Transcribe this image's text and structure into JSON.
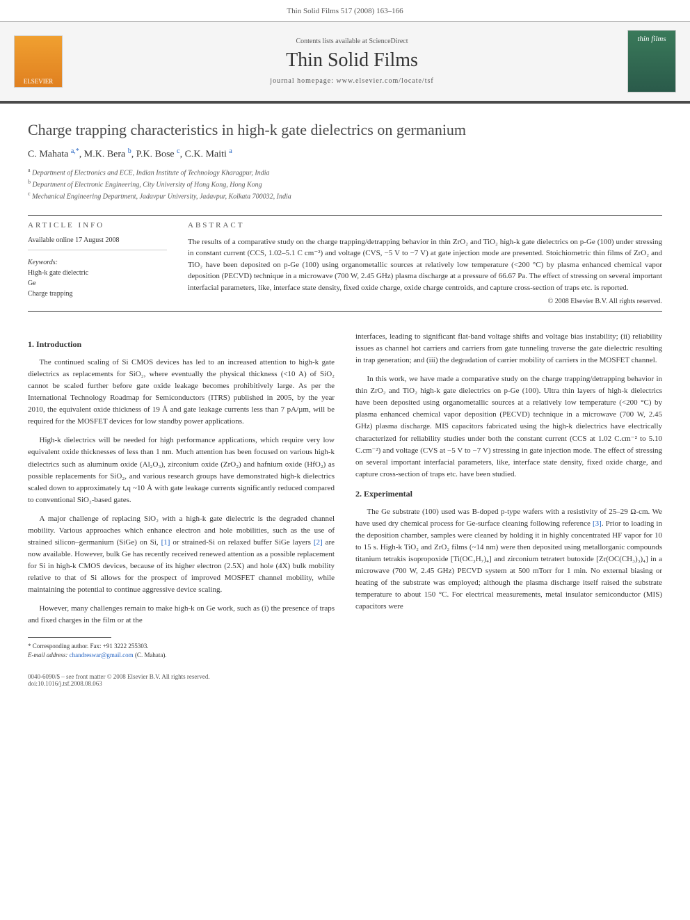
{
  "header": {
    "running_head": "Thin Solid Films 517 (2008) 163–166"
  },
  "banner": {
    "elsevier_label": "ELSEVIER",
    "contents_line": "Contents lists available at ScienceDirect",
    "journal_title": "Thin Solid Films",
    "homepage": "journal homepage: www.elsevier.com/locate/tsf",
    "cover_text": "thin films"
  },
  "article": {
    "title": "Charge trapping characteristics in high-k gate dielectrics on germanium",
    "authors_html": "C. Mahata <sup>a,*</sup>, M.K. Bera <sup>b</sup>, P.K. Bose <sup>c</sup>, C.K. Maiti <sup>a</sup>",
    "authors": [
      {
        "name": "C. Mahata",
        "affil": "a,*"
      },
      {
        "name": "M.K. Bera",
        "affil": "b"
      },
      {
        "name": "P.K. Bose",
        "affil": "c"
      },
      {
        "name": "C.K. Maiti",
        "affil": "a"
      }
    ],
    "affiliations": [
      {
        "key": "a",
        "text": "Department of Electronics and ECE, Indian Institute of Technology Kharagpur, India"
      },
      {
        "key": "b",
        "text": "Department of Electronic Engineering, City University of Hong Kong, Hong Kong"
      },
      {
        "key": "c",
        "text": "Mechanical Engineering Department, Jadavpur University, Jadavpur, Kolkata 700032, India"
      }
    ]
  },
  "info": {
    "heading": "ARTICLE INFO",
    "available": "Available online 17 August 2008",
    "keywords_label": "Keywords:",
    "keywords": [
      "High-k gate dielectric",
      "Ge",
      "Charge trapping"
    ]
  },
  "abstract": {
    "heading": "ABSTRACT",
    "text": "The results of a comparative study on the charge trapping/detrapping behavior in thin ZrO₂ and TiO₂ high-k gate dielectrics on p-Ge (100) under stressing in constant current (CCS, 1.02–5.1 C cm⁻²) and voltage (CVS, −5 V to −7 V) at gate injection mode are presented. Stoichiometric thin films of ZrO₂ and TiO₂ have been deposited on p-Ge (100) using organometallic sources at relatively low temperature (<200 °C) by plasma enhanced chemical vapor deposition (PECVD) technique in a microwave (700 W, 2.45 GHz) plasma discharge at a pressure of 66.67 Pa. The effect of stressing on several important interfacial parameters, like, interface state density, fixed oxide charge, oxide charge centroids, and capture cross-section of traps etc. is reported.",
    "copyright": "© 2008 Elsevier B.V. All rights reserved."
  },
  "sections": {
    "intro_heading": "1. Introduction",
    "intro_p1": "The continued scaling of Si CMOS devices has led to an increased attention to high-k gate dielectrics as replacements for SiO₂, where eventually the physical thickness (<10 A) of SiO₂ cannot be scaled further before gate oxide leakage becomes prohibitively large. As per the International Technology Roadmap for Semiconductors (ITRS) published in 2005, by the year 2010, the equivalent oxide thickness of 19 Å and gate leakage currents less than 7 pA/µm, will be required for the MOSFET devices for low standby power applications.",
    "intro_p2": "High-k dielectrics will be needed for high performance applications, which require very low equivalent oxide thicknesses of less than 1 nm. Much attention has been focused on various high-k dielectrics such as aluminum oxide (Al₂O₃), zirconium oxide (ZrO₂) and hafnium oxide (HfO₂) as possible replacements for SiO₂, and various research groups have demonstrated high-k dielectrics scaled down to approximately tₑq ~10 Å with gate leakage currents significantly reduced compared to conventional SiO₂-based gates.",
    "intro_p3_part1": "A major challenge of replacing SiO₂ with a high-k gate dielectric is the degraded channel mobility. Various approaches which enhance electron and hole mobilities, such as the use of strained silicon–germanium (SiGe) on Si, ",
    "intro_p3_ref1": "[1]",
    "intro_p3_part2": " or strained-Si on relaxed buffer SiGe layers ",
    "intro_p3_ref2": "[2]",
    "intro_p3_part3": " are now available. However, bulk Ge has recently received renewed attention as a possible replacement for Si in high-k CMOS devices, because of its higher electron (2.5X) and hole (4X) bulk mobility relative to that of Si allows for the prospect of improved MOSFET channel mobility, while maintaining the potential to continue aggressive device scaling.",
    "intro_p4": "However, many challenges remain to make high-k on Ge work, such as (i) the presence of traps and fixed charges in the film or at the",
    "col2_p1": "interfaces, leading to significant flat-band voltage shifts and voltage bias instability; (ii) reliability issues as channel hot carriers and carriers from gate tunneling traverse the gate dielectric resulting in trap generation; and (iii) the degradation of carrier mobility of carriers in the MOSFET channel.",
    "col2_p2": "In this work, we have made a comparative study on the charge trapping/detrapping behavior in thin ZrO₂ and TiO₂ high-k gate dielectrics on p-Ge (100). Ultra thin layers of high-k dielectrics have been deposited using organometallic sources at a relatively low temperature (<200 °C) by plasma enhanced chemical vapor deposition (PECVD) technique in a microwave (700 W, 2.45 GHz) plasma discharge. MIS capacitors fabricated using the high-k dielectrics have electrically characterized for reliability studies under both the constant current (CCS at 1.02 C.cm⁻² to 5.10 C.cm⁻²) and voltage (CVS at −5 V to −7 V) stressing in gate injection mode. The effect of stressing on several important interfacial parameters, like, interface state density, fixed oxide charge, and capture cross-section of traps etc. have been studied.",
    "exp_heading": "2. Experimental",
    "exp_p1_part1": "The Ge substrate (100) used was B-doped p-type wafers with a resistivity of 25–29 Ω-cm. We have used dry chemical process for Ge-surface cleaning following reference ",
    "exp_p1_ref": "[3]",
    "exp_p1_part2": ". Prior to loading in the deposition chamber, samples were cleaned by holding it in highly concentrated HF vapor for 10 to 15 s. High-k TiO₂ and ZrO₂ films (~14 nm) were then deposited using metallorganic compounds titanium tetrakis isopropoxide [Ti(OC₃H₇)₄] and zirconium tetratert butoxide [Zr(OC(CH₃)₃)₄] in a microwave (700 W, 2.45 GHz) PECVD system at 500 mTorr for 1 min. No external biasing or heating of the substrate was employed; although the plasma discharge itself raised the substrate temperature to about 150 °C. For electrical measurements, metal insulator semiconductor (MIS) capacitors were"
  },
  "footnote": {
    "corresponding": "* Corresponding author. Fax: +91 3222 255303.",
    "email_label": "E-mail address:",
    "email": "chandreswar@gmail.com",
    "email_name": "(C. Mahata)."
  },
  "bottom": {
    "issn": "0040-6090/$ – see front matter © 2008 Elsevier B.V. All rights reserved.",
    "doi": "doi:10.1016/j.tsf.2008.08.063"
  },
  "colors": {
    "text": "#333333",
    "link": "#2060c0",
    "banner_bg": "#f5f5f5",
    "banner_border": "#4a4a4a",
    "elsevier_bg": "#e89030",
    "cover_bg": "#3a7a5a"
  }
}
